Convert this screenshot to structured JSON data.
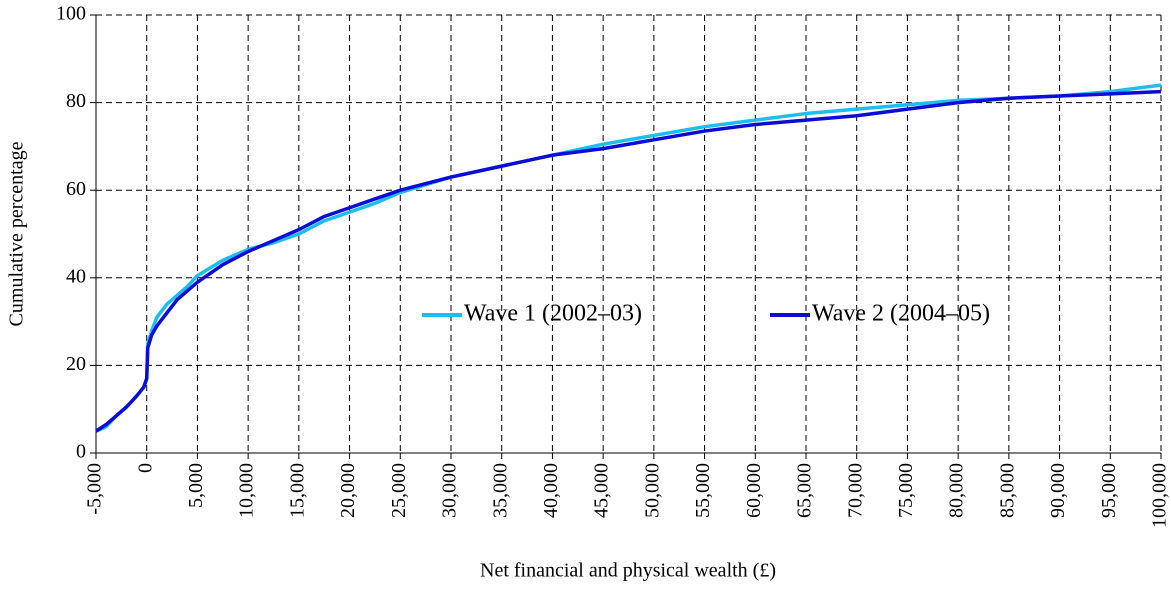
{
  "chart_data": {
    "type": "line",
    "xlabel": "Net financial and physical wealth (£)",
    "ylabel": "Cumulative percentage",
    "x": [
      -5000,
      -4000,
      -3000,
      -2000,
      -1000,
      -300,
      0,
      100,
      500,
      1000,
      2000,
      3000,
      4000,
      5000,
      7500,
      10000,
      12500,
      15000,
      17500,
      20000,
      22500,
      25000,
      30000,
      35000,
      40000,
      45000,
      50000,
      55000,
      60000,
      65000,
      70000,
      75000,
      80000,
      85000,
      90000,
      95000,
      100000
    ],
    "series": [
      {
        "name": "Wave 1 (2002–03)",
        "color": "#1cbdef",
        "values": [
          5,
          6,
          8.5,
          10.5,
          13,
          15,
          17,
          25,
          28,
          31,
          34,
          36,
          38,
          40.5,
          44,
          46.5,
          48,
          50,
          53,
          55,
          57,
          59.5,
          63,
          65.5,
          68,
          70.5,
          72.5,
          74.5,
          76,
          77.5,
          78.5,
          79.5,
          80.5,
          81,
          81.5,
          82.5,
          84
        ]
      },
      {
        "name": "Wave 2 (2004–05)",
        "color": "#0c0cd6",
        "values": [
          5,
          6.5,
          8.5,
          10.5,
          13,
          15,
          17,
          24,
          27,
          29,
          32,
          35,
          37,
          39,
          43,
          46,
          48.5,
          51,
          54,
          56,
          58,
          60,
          63,
          65.5,
          68,
          69.5,
          71.5,
          73.5,
          75,
          76,
          77,
          78.5,
          80,
          81,
          81.5,
          82,
          82.5
        ]
      }
    ],
    "xlim": [
      -5000,
      100000
    ],
    "xticks": [
      {
        "value": -5000,
        "label": "-5,000"
      },
      0,
      {
        "value": 5000,
        "label": "5,000"
      },
      {
        "value": 10000,
        "label": "10,000"
      },
      {
        "value": 15000,
        "label": "15,000"
      },
      {
        "value": 20000,
        "label": "20,000"
      },
      {
        "value": 25000,
        "label": "25,000"
      },
      {
        "value": 30000,
        "label": "30,000"
      },
      {
        "value": 35000,
        "label": "35,000"
      },
      {
        "value": 40000,
        "label": "40,000"
      },
      {
        "value": 45000,
        "label": "45,000"
      },
      {
        "value": 50000,
        "label": "50,000"
      },
      {
        "value": 55000,
        "label": "55,000"
      },
      {
        "value": 60000,
        "label": "60,000"
      },
      {
        "value": 65000,
        "label": "65,000"
      },
      {
        "value": 70000,
        "label": "70,000"
      },
      {
        "value": 75000,
        "label": "75,000"
      },
      {
        "value": 80000,
        "label": "80,000"
      },
      {
        "value": 85000,
        "label": "85,000"
      },
      {
        "value": 90000,
        "label": "90,000"
      },
      {
        "value": 95000,
        "label": "95,000"
      },
      {
        "value": 100000,
        "label": "100,000"
      }
    ],
    "ylim": [
      0,
      100
    ],
    "yticks": [
      0,
      20,
      40,
      60,
      80,
      100
    ],
    "grid": true
  }
}
